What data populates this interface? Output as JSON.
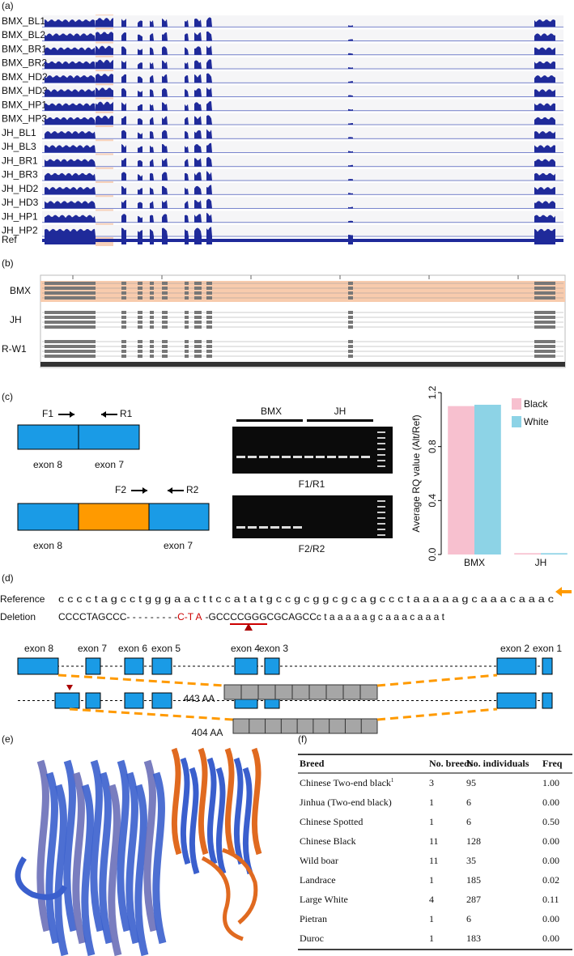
{
  "panel_labels": [
    "(a)",
    "(b)",
    "(c)",
    "(d)",
    "(e)",
    "(f)"
  ],
  "panel_a": {
    "tracks": [
      "BMX_BL1",
      "BMX_BL2",
      "BMX_BR1",
      "BMX_BR2",
      "BMX_HD2",
      "BMX_HD3",
      "BMX_HP1",
      "BMX_HP3",
      "JH_BL1",
      "JH_BL3",
      "JH_BR1",
      "JH_BR3",
      "JH_HD2",
      "JH_HD3",
      "JH_HP1",
      "JH_HP2"
    ],
    "ref_label": "Ref"
  },
  "panel_b": {
    "rows": [
      "BMX",
      "JH",
      "R-W1"
    ]
  },
  "panel_c": {
    "primers1": [
      "F1",
      "R1"
    ],
    "exons1": [
      "exon 8",
      "exon 7"
    ],
    "primers2": [
      "F2",
      "R2"
    ],
    "exons2": [
      "exon 8",
      "exon 7"
    ],
    "gel_groups": [
      "BMX",
      "JH"
    ],
    "gel_labels": [
      "F1/R1",
      "F2/R2"
    ]
  },
  "chart_data": {
    "type": "bar",
    "ylabel": "Average RQ value (Alt/Ref)",
    "categories": [
      "BMX",
      "JH"
    ],
    "series": [
      {
        "name": "Black",
        "color": "#f7c0cf",
        "values": [
          1.1,
          0.01
        ]
      },
      {
        "name": "White",
        "color": "#8dd3e6",
        "values": [
          1.11,
          0.01
        ]
      }
    ],
    "ylim": [
      0,
      1.2
    ],
    "yticks": [
      {
        "value": 0,
        "label": "0.0"
      },
      0.4,
      0.8,
      1.2
    ],
    "legend": "upper right"
  },
  "panel_d": {
    "reference_label": "Reference",
    "reference_seq": "c c c c t a g c c t g g g a a c t t c c a t a t g c c g c g g c g c a g c c c t a a a a a g c a a a c a a a c",
    "deletion_label": "Deletion",
    "deletion_before": "CCCCTAGCCC- - - - - - - - -",
    "deletion_mark": "C-T A",
    "deletion_after": "-GCCCCGGGCGCAGCCc t a a a a a g c a a a c a a a t",
    "exons": [
      "exon 8",
      "exon 7",
      "exon 6",
      "exon 5",
      "exon 4",
      "exon 3",
      "exon 2",
      "exon 1"
    ],
    "isoforms": [
      "443 AA",
      "404 AA"
    ]
  },
  "panel_f": {
    "columns": [
      "Breed",
      "No. breeds",
      "No. individuals",
      "Freq"
    ],
    "footnote_mark": "1",
    "rows": [
      [
        "Chinese Two-end black",
        "3",
        "95",
        "1.00"
      ],
      [
        "Jinhua (Two-end black)",
        "1",
        "6",
        "0.00"
      ],
      [
        "Chinese Spotted",
        "1",
        "6",
        "0.50"
      ],
      [
        "Chinese Black",
        "11",
        "128",
        "0.00"
      ],
      [
        "Wild boar",
        "11",
        "35",
        "0.00"
      ],
      [
        "Landrace",
        "1",
        "185",
        "0.02"
      ],
      [
        "Large White",
        "4",
        "287",
        "0.11"
      ],
      [
        "Pietran",
        "1",
        "6",
        "0.00"
      ],
      [
        "Duroc",
        "1",
        "183",
        "0.00"
      ]
    ]
  }
}
